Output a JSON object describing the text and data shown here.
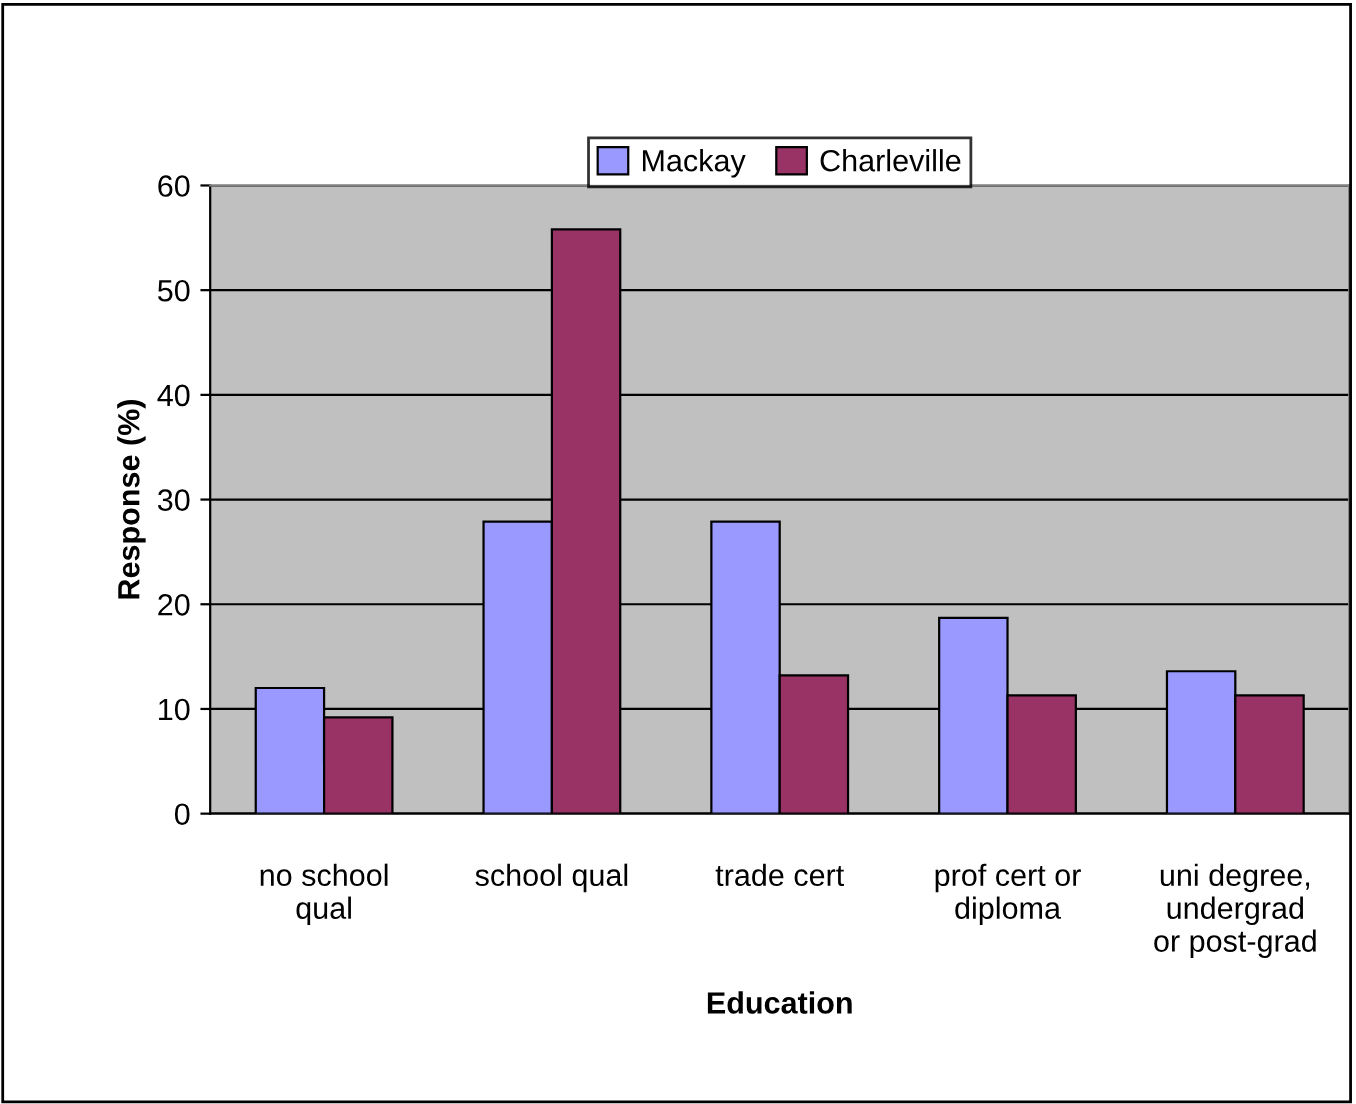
{
  "chart_data": {
    "type": "bar",
    "xlabel": "Education",
    "ylabel": "Response (%)",
    "categories": [
      "no school\nqual",
      "school qual",
      "trade cert",
      "prof cert or\ndiploma",
      "uni degree,\nundergrad\nor post-grad"
    ],
    "series": [
      {
        "name": "Mackay",
        "color": "#9999ff",
        "values": [
          12.0,
          27.9,
          27.9,
          18.7,
          13.6
        ]
      },
      {
        "name": "Charleville",
        "color": "#993366",
        "values": [
          9.2,
          55.8,
          13.2,
          11.3,
          11.3
        ]
      }
    ],
    "ylim": [
      0,
      60
    ],
    "yticks": [
      0,
      10,
      20,
      30,
      40,
      50,
      60
    ],
    "grid": "y",
    "legend": "top"
  }
}
